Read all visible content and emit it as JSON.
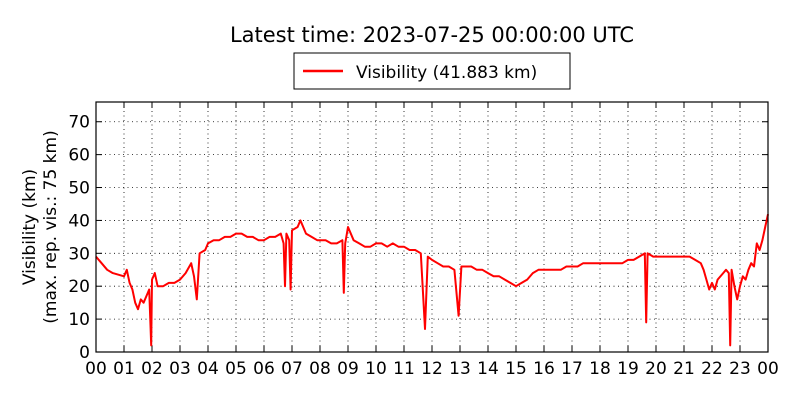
{
  "chart_data": {
    "type": "line",
    "title": "Latest time: 2023-07-25 00:00:00 UTC",
    "ylabel_lines": [
      "Visibility (km)",
      "(max. rep. vis.: 75 km)"
    ],
    "xlabel": "",
    "x_ticks": [
      "00",
      "01",
      "02",
      "03",
      "04",
      "05",
      "06",
      "07",
      "08",
      "09",
      "10",
      "11",
      "12",
      "13",
      "14",
      "15",
      "16",
      "17",
      "18",
      "19",
      "20",
      "21",
      "22",
      "23",
      "00"
    ],
    "y_ticks": [
      0,
      10,
      20,
      30,
      40,
      50,
      60,
      70
    ],
    "xlim_hours": [
      0,
      24
    ],
    "ylim": [
      0,
      76
    ],
    "grid": true,
    "legend": {
      "placement": "top-center",
      "entries": [
        "Visibility (41.883 km)"
      ]
    },
    "series": [
      {
        "name": "Visibility (41.883 km)",
        "color": "#ff0000",
        "points": [
          [
            0.0,
            29
          ],
          [
            0.2,
            27
          ],
          [
            0.4,
            25
          ],
          [
            0.6,
            24
          ],
          [
            0.8,
            23.5
          ],
          [
            1.0,
            23
          ],
          [
            1.1,
            25
          ],
          [
            1.2,
            21
          ],
          [
            1.3,
            19
          ],
          [
            1.4,
            15
          ],
          [
            1.5,
            13
          ],
          [
            1.6,
            16
          ],
          [
            1.7,
            15
          ],
          [
            1.8,
            17
          ],
          [
            1.9,
            19
          ],
          [
            1.97,
            2
          ],
          [
            2.0,
            22
          ],
          [
            2.1,
            24
          ],
          [
            2.2,
            20
          ],
          [
            2.4,
            20
          ],
          [
            2.6,
            21
          ],
          [
            2.8,
            21
          ],
          [
            3.0,
            22
          ],
          [
            3.2,
            24
          ],
          [
            3.4,
            27
          ],
          [
            3.5,
            23
          ],
          [
            3.6,
            16
          ],
          [
            3.7,
            30
          ],
          [
            3.9,
            31
          ],
          [
            4.0,
            33
          ],
          [
            4.2,
            34
          ],
          [
            4.4,
            34
          ],
          [
            4.6,
            35
          ],
          [
            4.8,
            35
          ],
          [
            5.0,
            36
          ],
          [
            5.2,
            36
          ],
          [
            5.4,
            35
          ],
          [
            5.6,
            35
          ],
          [
            5.8,
            34
          ],
          [
            6.0,
            34
          ],
          [
            6.2,
            35
          ],
          [
            6.4,
            35
          ],
          [
            6.6,
            36
          ],
          [
            6.7,
            33
          ],
          [
            6.75,
            20
          ],
          [
            6.8,
            36
          ],
          [
            6.9,
            34
          ],
          [
            6.95,
            19
          ],
          [
            7.0,
            37
          ],
          [
            7.2,
            38
          ],
          [
            7.3,
            40
          ],
          [
            7.5,
            36
          ],
          [
            7.7,
            35
          ],
          [
            7.9,
            34
          ],
          [
            8.0,
            34
          ],
          [
            8.2,
            34
          ],
          [
            8.4,
            33
          ],
          [
            8.6,
            33
          ],
          [
            8.8,
            34
          ],
          [
            8.85,
            18
          ],
          [
            8.9,
            33
          ],
          [
            9.0,
            38
          ],
          [
            9.2,
            34
          ],
          [
            9.4,
            33
          ],
          [
            9.6,
            32
          ],
          [
            9.8,
            32
          ],
          [
            10.0,
            33
          ],
          [
            10.2,
            33
          ],
          [
            10.4,
            32
          ],
          [
            10.6,
            33
          ],
          [
            10.8,
            32
          ],
          [
            11.0,
            32
          ],
          [
            11.2,
            31
          ],
          [
            11.4,
            31
          ],
          [
            11.6,
            30
          ],
          [
            11.75,
            7
          ],
          [
            11.85,
            29
          ],
          [
            12.0,
            28
          ],
          [
            12.2,
            27
          ],
          [
            12.4,
            26
          ],
          [
            12.6,
            26
          ],
          [
            12.8,
            25
          ],
          [
            12.95,
            11
          ],
          [
            13.05,
            26
          ],
          [
            13.2,
            26
          ],
          [
            13.4,
            26
          ],
          [
            13.6,
            25
          ],
          [
            13.8,
            25
          ],
          [
            14.0,
            24
          ],
          [
            14.2,
            23
          ],
          [
            14.4,
            23
          ],
          [
            14.6,
            22
          ],
          [
            14.8,
            21
          ],
          [
            15.0,
            20
          ],
          [
            15.2,
            21
          ],
          [
            15.4,
            22
          ],
          [
            15.6,
            24
          ],
          [
            15.8,
            25
          ],
          [
            16.0,
            25
          ],
          [
            16.2,
            25
          ],
          [
            16.4,
            25
          ],
          [
            16.6,
            25
          ],
          [
            16.8,
            26
          ],
          [
            17.0,
            26
          ],
          [
            17.2,
            26
          ],
          [
            17.4,
            27
          ],
          [
            17.6,
            27
          ],
          [
            17.8,
            27
          ],
          [
            18.0,
            27
          ],
          [
            18.2,
            27
          ],
          [
            18.4,
            27
          ],
          [
            18.6,
            27
          ],
          [
            18.8,
            27
          ],
          [
            19.0,
            28
          ],
          [
            19.2,
            28
          ],
          [
            19.4,
            29
          ],
          [
            19.6,
            30
          ],
          [
            19.65,
            9
          ],
          [
            19.7,
            30
          ],
          [
            19.9,
            29
          ],
          [
            20.0,
            29
          ],
          [
            20.2,
            29
          ],
          [
            20.4,
            29
          ],
          [
            20.6,
            29
          ],
          [
            20.8,
            29
          ],
          [
            21.0,
            29
          ],
          [
            21.2,
            29
          ],
          [
            21.4,
            28
          ],
          [
            21.6,
            27
          ],
          [
            21.7,
            25
          ],
          [
            21.8,
            22
          ],
          [
            21.9,
            19
          ],
          [
            22.0,
            21
          ],
          [
            22.1,
            19
          ],
          [
            22.2,
            22
          ],
          [
            22.4,
            24
          ],
          [
            22.5,
            25
          ],
          [
            22.6,
            24
          ],
          [
            22.65,
            2
          ],
          [
            22.7,
            25
          ],
          [
            22.8,
            20
          ],
          [
            22.9,
            16
          ],
          [
            23.0,
            20
          ],
          [
            23.1,
            23
          ],
          [
            23.2,
            22
          ],
          [
            23.3,
            25
          ],
          [
            23.4,
            27
          ],
          [
            23.5,
            26
          ],
          [
            23.6,
            33
          ],
          [
            23.7,
            31
          ],
          [
            23.8,
            34
          ],
          [
            23.9,
            38
          ],
          [
            24.0,
            41.883
          ]
        ]
      }
    ]
  }
}
